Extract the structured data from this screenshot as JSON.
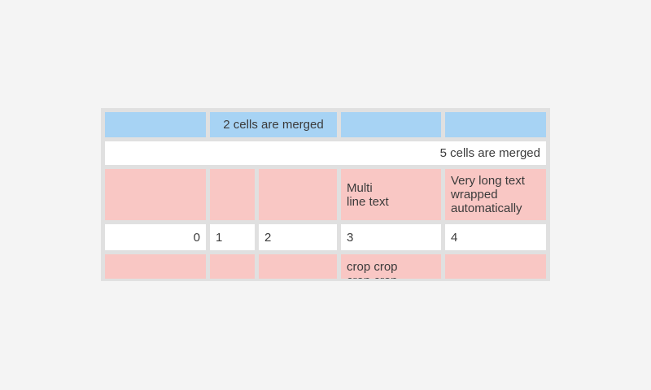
{
  "theme": {
    "page-bg": "#f4f4f4",
    "table-bg": "#e0e0e0",
    "cell-blue": "#a7d3f4",
    "cell-pink": "#f9c7c4",
    "cell-white": "#ffffff",
    "text-color": "#3b3b3b"
  },
  "table": {
    "rows": [
      {
        "description": "blue row with 2-cell merge",
        "cells": [
          {
            "text": ""
          },
          {
            "text": "2 cells are merged"
          },
          {
            "text": ""
          },
          {
            "text": ""
          }
        ]
      },
      {
        "description": "white row merged across all 5 columns",
        "cells": [
          {
            "text": "5 cells are merged"
          }
        ]
      },
      {
        "description": "pink row with multiline and wrapped text",
        "cells": [
          {
            "text": ""
          },
          {
            "text": ""
          },
          {
            "text": ""
          },
          {
            "text": "Multi\nline text"
          },
          {
            "text": "Very long text wrapped automatically"
          }
        ]
      },
      {
        "description": "white numeric row",
        "cells": [
          {
            "text": "0"
          },
          {
            "text": "1"
          },
          {
            "text": "2"
          },
          {
            "text": "3"
          },
          {
            "text": "4"
          }
        ]
      },
      {
        "description": "pink row cropped at table bottom",
        "cells": [
          {
            "text": ""
          },
          {
            "text": ""
          },
          {
            "text": ""
          },
          {
            "text": "crop crop\ncrop crop"
          },
          {
            "text": ""
          }
        ]
      }
    ]
  }
}
